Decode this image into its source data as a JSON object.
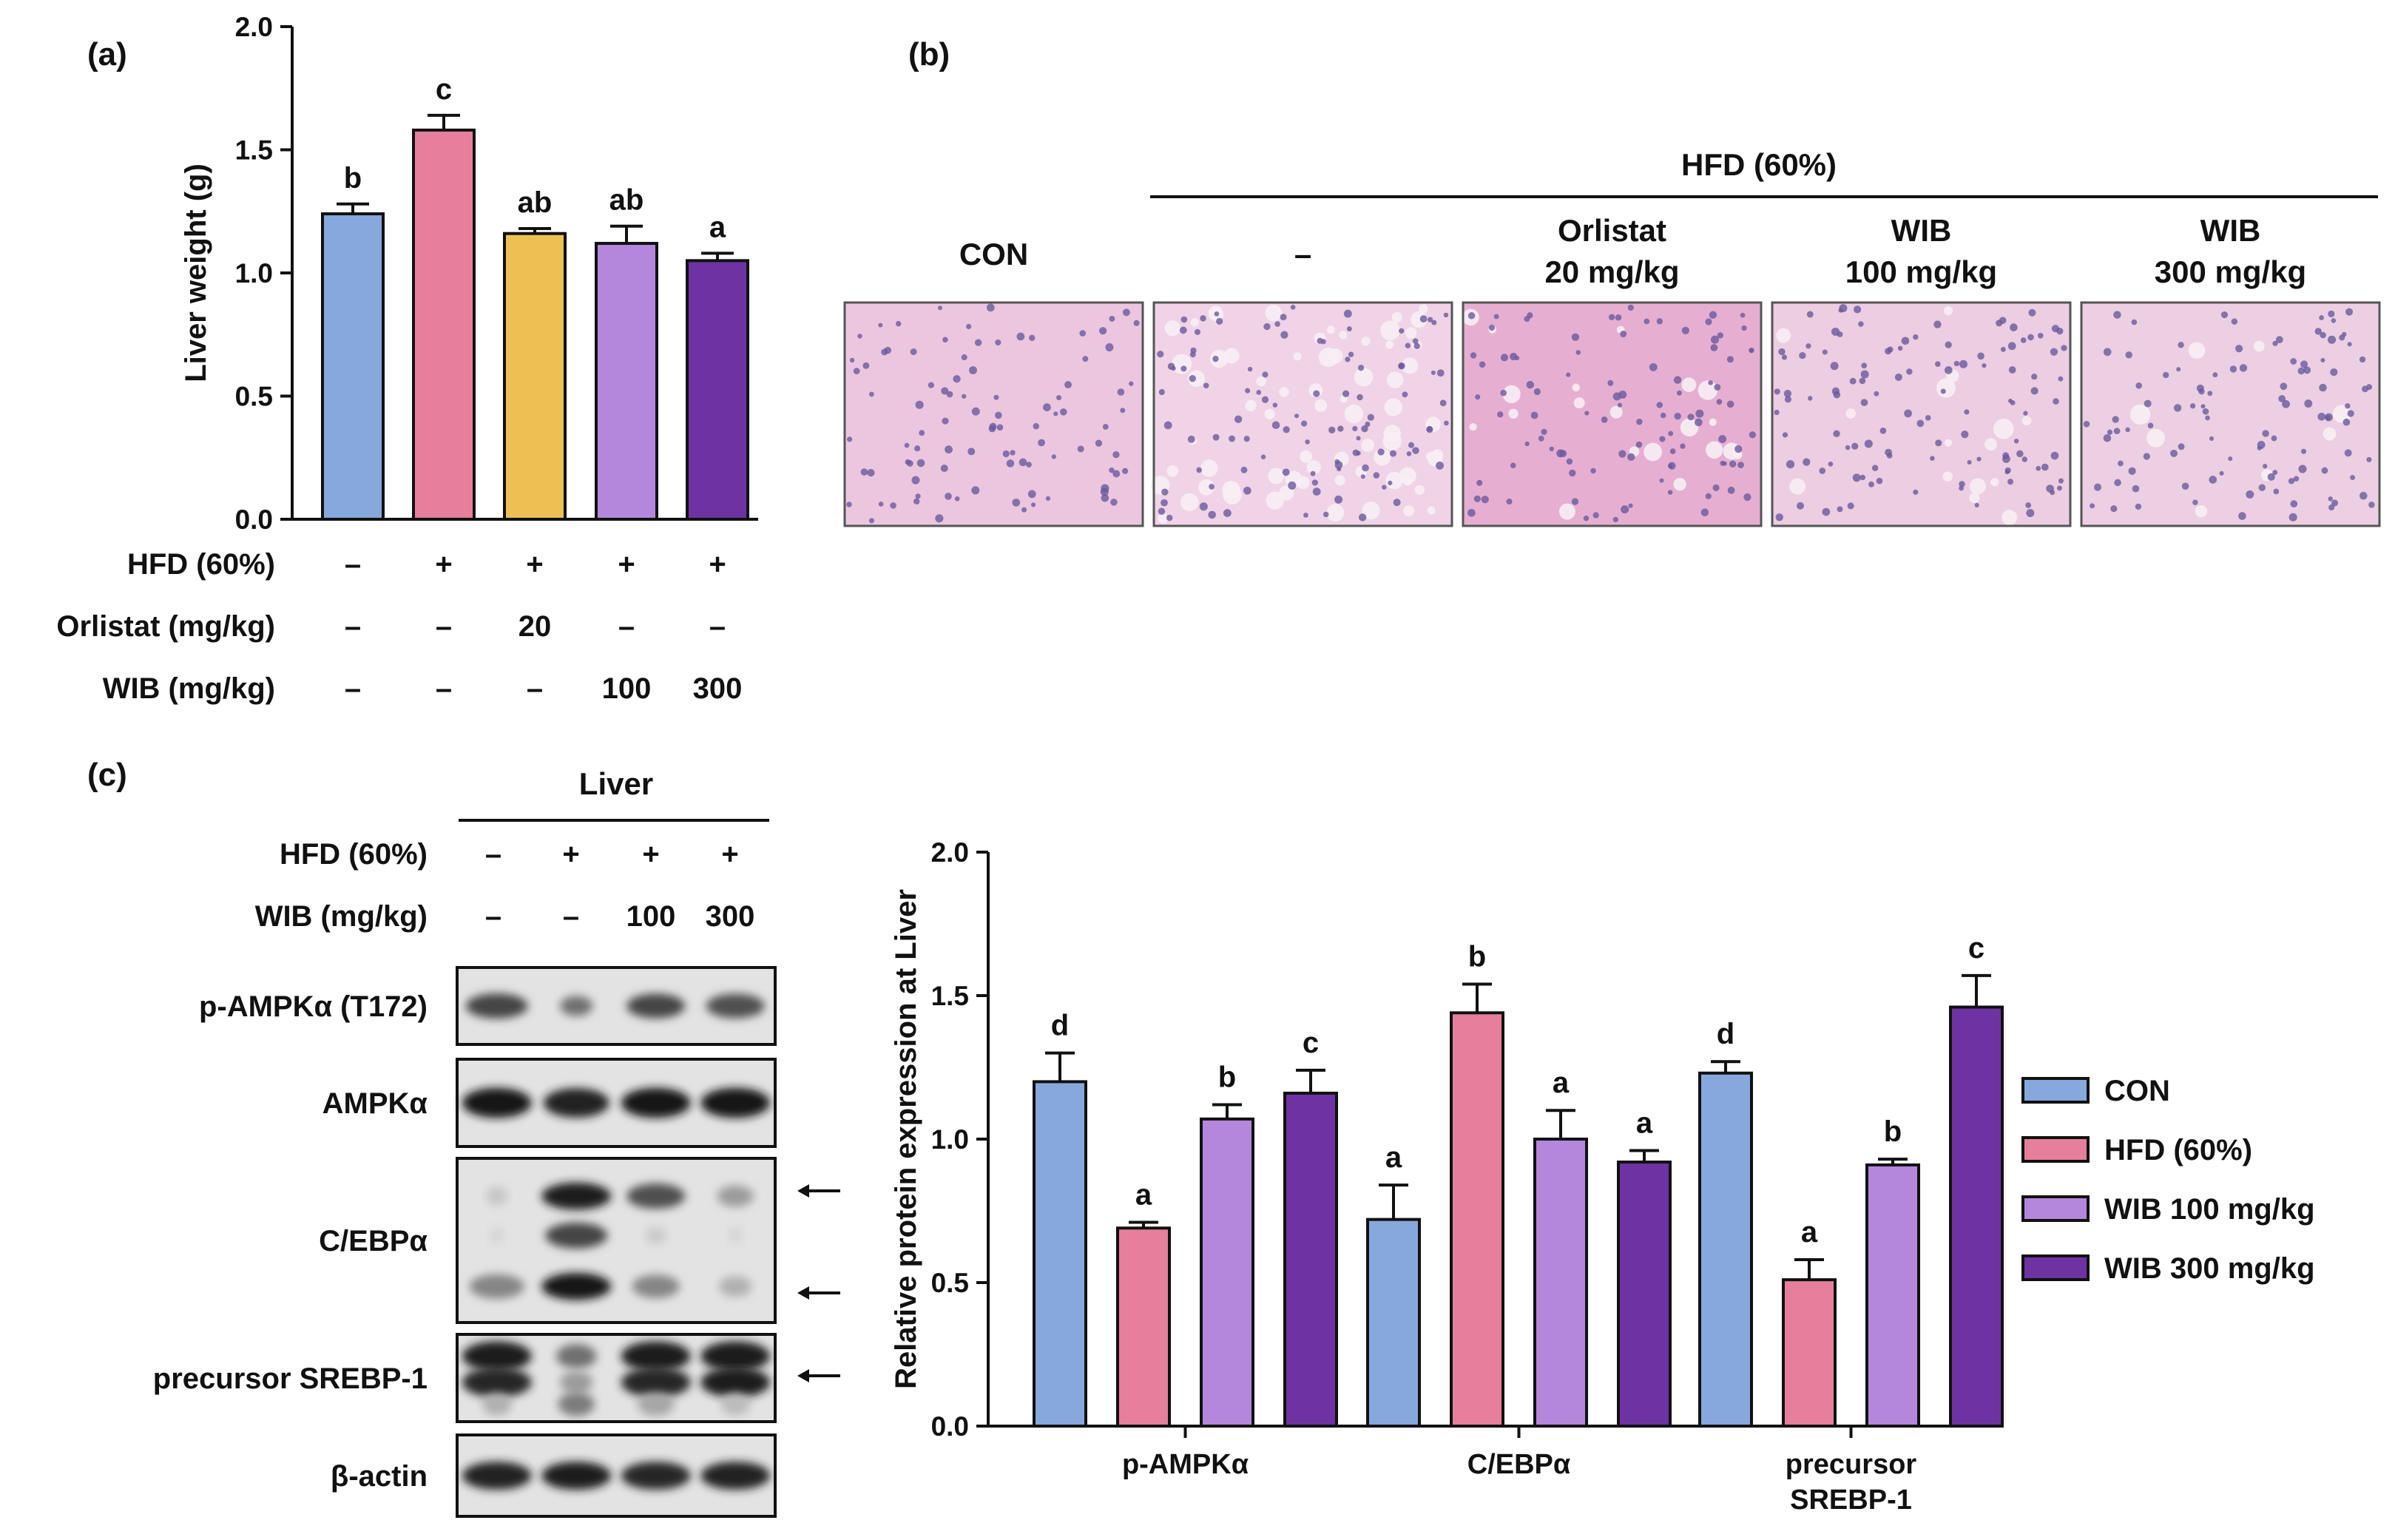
{
  "panels": {
    "a": "(a)",
    "b": "(b)",
    "c": "(c)"
  },
  "chart_data": [
    {
      "type": "bar",
      "panel": "(a)",
      "ylabel": "Liver weight (g)",
      "ylim": [
        0,
        2.0
      ],
      "yticks": [
        "0.0",
        "0.5",
        "1.0",
        "1.5",
        "2.0"
      ],
      "categories": [
        "CON",
        "HFD",
        "Orlistat 20",
        "WIB 100",
        "WIB 300"
      ],
      "values": [
        1.24,
        1.58,
        1.16,
        1.12,
        1.05
      ],
      "errors": [
        0.04,
        0.06,
        0.02,
        0.07,
        0.03
      ],
      "letters": [
        "b",
        "c",
        "ab",
        "ab",
        "a"
      ],
      "colors": [
        "#86a8dc",
        "#e57f9c",
        "#ecc052",
        "#b487dc",
        "#6e32a2"
      ],
      "rows": [
        {
          "label": "HFD (60%)",
          "cells": [
            "–",
            "+",
            "+",
            "+",
            "+"
          ]
        },
        {
          "label": "Orlistat (mg/kg)",
          "cells": [
            "–",
            "–",
            "20",
            "–",
            "–"
          ]
        },
        {
          "label": "WIB (mg/kg)",
          "cells": [
            "–",
            "–",
            "–",
            "100",
            "300"
          ]
        }
      ]
    },
    {
      "type": "bar",
      "panel": "(c)",
      "ylabel": "Relative protein expression at Liver",
      "ylim": [
        0,
        2.0
      ],
      "yticks": [
        "0.0",
        "0.5",
        "1.0",
        "1.5",
        "2.0"
      ],
      "categories": [
        "p-AMPKα",
        "C/EBPα",
        "precursor SREBP-1"
      ],
      "category_lines": [
        [
          "p-AMPKα"
        ],
        [
          "C/EBPα"
        ],
        [
          "precursor",
          "SREBP-1"
        ]
      ],
      "series": [
        {
          "name": "CON",
          "color": "#86a8dc",
          "values": [
            1.2,
            0.72,
            1.23
          ],
          "errors": [
            0.1,
            0.12,
            0.04
          ],
          "letters": [
            "d",
            "a",
            "d"
          ]
        },
        {
          "name": "HFD (60%)",
          "color": "#e57f9c",
          "values": [
            0.69,
            1.44,
            0.51
          ],
          "errors": [
            0.02,
            0.1,
            0.07
          ],
          "letters": [
            "a",
            "b",
            "a"
          ]
        },
        {
          "name": "WIB 100 mg/kg",
          "color": "#b487dc",
          "values": [
            1.07,
            1.0,
            0.91
          ],
          "errors": [
            0.05,
            0.1,
            0.02
          ],
          "letters": [
            "b",
            "a",
            "b"
          ]
        },
        {
          "name": "WIB 300 mg/kg",
          "color": "#6e32a2",
          "values": [
            1.16,
            0.92,
            1.46
          ],
          "errors": [
            0.08,
            0.04,
            0.11
          ],
          "letters": [
            "c",
            "a",
            "c"
          ]
        }
      ],
      "legend_placement": "right"
    }
  ],
  "histology": {
    "header": "HFD (60%)",
    "columns": [
      {
        "lines": [
          "CON"
        ]
      },
      {
        "lines": [
          "–"
        ]
      },
      {
        "lines": [
          "Orlistat",
          "20 mg/kg"
        ]
      },
      {
        "lines": [
          "WIB",
          "100 mg/kg"
        ]
      },
      {
        "lines": [
          "WIB",
          "300 mg/kg"
        ]
      }
    ]
  },
  "western": {
    "header": "Liver",
    "rows": [
      {
        "label": "HFD (60%)",
        "cells": [
          "–",
          "+",
          "+",
          "+"
        ]
      },
      {
        "label": "WIB (mg/kg)",
        "cells": [
          "–",
          "–",
          "100",
          "300"
        ]
      }
    ],
    "blots": [
      "p-AMPKα (T172)",
      "AMPKα",
      "C/EBPα",
      "precursor SREBP-1",
      "β-actin"
    ]
  },
  "colors": {
    "axis": "#111111",
    "tissue_bg": "#e9c2dc",
    "nucleus": "#6a5a9e"
  }
}
